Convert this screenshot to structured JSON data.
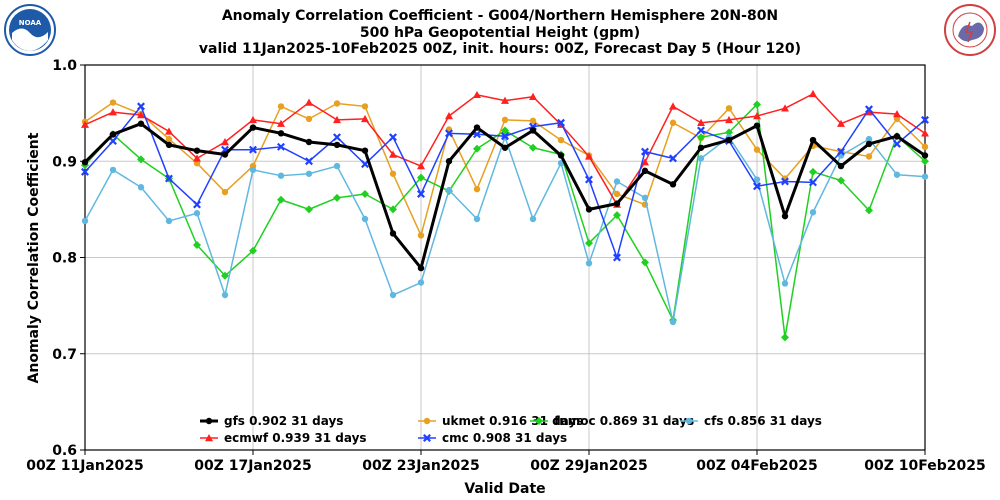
{
  "chart_data": {
    "type": "line",
    "title": "Anomaly Correlation Coefficient - G004/Northern Hemisphere 20N-80N",
    "subtitle": "500 hPa Geopotential Height (gpm)",
    "subtitle2": "valid 11Jan2025-10Feb2025 00Z, init. hours: 00Z, Forecast Day 5 (Hour 120)",
    "xlabel": "Valid Date",
    "ylabel": "Anomaly Correlation Coefficient",
    "ylim": [
      0.6,
      1.0
    ],
    "yticks": [
      "0.6",
      "0.7",
      "0.8",
      "0.9",
      "1.0"
    ],
    "xtick_labels": [
      "00Z 11Jan2025",
      "00Z 17Jan2025",
      "00Z 23Jan2025",
      "00Z 29Jan2025",
      "00Z 04Feb2025",
      "00Z 10Feb2025"
    ],
    "xtick_days": [
      0,
      6,
      12,
      18,
      24,
      30
    ],
    "grid": true,
    "legend_position": "lower-center",
    "x_days": [
      0,
      1,
      2,
      3,
      4,
      5,
      6,
      7,
      8,
      9,
      10,
      11,
      12,
      13,
      14,
      15,
      16,
      17,
      18,
      19,
      20,
      21,
      22,
      23,
      24,
      25,
      26,
      27,
      28,
      29,
      30
    ],
    "series": [
      {
        "name": "gfs",
        "label": "gfs 0.902 31 days",
        "color": "#000000",
        "marker": "circle",
        "width": 3,
        "values": [
          0.899,
          0.928,
          0.939,
          0.917,
          0.911,
          0.907,
          0.935,
          0.929,
          0.92,
          0.917,
          0.911,
          0.825,
          0.789,
          0.9,
          0.935,
          0.914,
          0.932,
          0.906,
          0.85,
          0.856,
          0.89,
          0.876,
          0.914,
          0.922,
          0.937,
          0.843,
          0.922,
          0.895,
          0.918,
          0.926,
          0.906
        ]
      },
      {
        "name": "ukmet",
        "label": "ukmet 0.916 31 days",
        "color": "#e8a020",
        "marker": "circle",
        "width": 1.5,
        "values": [
          0.941,
          0.961,
          0.949,
          0.923,
          0.898,
          0.868,
          0.895,
          0.957,
          0.944,
          0.96,
          0.957,
          0.887,
          0.823,
          0.933,
          0.871,
          0.943,
          0.942,
          0.922,
          0.906,
          0.866,
          0.855,
          0.94,
          0.924,
          0.955,
          0.912,
          0.882,
          0.916,
          0.91,
          0.905,
          0.944,
          0.915
        ]
      },
      {
        "name": "fnmoc",
        "label": "fnmoc 0.869 31 days",
        "color": "#20d020",
        "marker": "diamond",
        "width": 1.5,
        "values": [
          0.896,
          0.928,
          0.902,
          0.882,
          0.813,
          0.781,
          0.807,
          0.86,
          0.85,
          0.862,
          0.866,
          0.85,
          0.883,
          0.869,
          0.913,
          0.932,
          0.914,
          0.907,
          0.815,
          0.844,
          0.795,
          0.735,
          0.925,
          0.93,
          0.959,
          0.717,
          0.889,
          0.88,
          0.849,
          0.926,
          0.9
        ]
      },
      {
        "name": "cfs",
        "label": "cfs 0.856 31 days",
        "color": "#60b8e0",
        "marker": "circle",
        "width": 1.5,
        "values": [
          0.838,
          0.891,
          0.873,
          0.838,
          0.846,
          0.761,
          0.891,
          0.885,
          0.887,
          0.895,
          0.84,
          0.761,
          0.774,
          0.87,
          0.84,
          0.925,
          0.84,
          0.898,
          0.794,
          0.879,
          0.862,
          0.733,
          0.903,
          0.925,
          0.881,
          0.773,
          0.847,
          0.906,
          0.923,
          0.886,
          0.884
        ]
      },
      {
        "name": "ecmwf",
        "label": "ecmwf 0.939 31 days",
        "color": "#ff2020",
        "marker": "triangle",
        "width": 1.5,
        "values": [
          0.938,
          0.951,
          0.948,
          0.931,
          0.903,
          0.92,
          0.943,
          0.939,
          0.961,
          0.943,
          0.944,
          0.907,
          0.895,
          0.947,
          0.969,
          0.963,
          0.967,
          0.938,
          0.905,
          0.855,
          0.899,
          0.957,
          0.94,
          0.943,
          0.947,
          0.955,
          0.97,
          0.939,
          0.951,
          0.949,
          0.929
        ]
      },
      {
        "name": "cmc",
        "label": "cmc 0.908 31 days",
        "color": "#2040ff",
        "marker": "x",
        "width": 1.5,
        "values": [
          0.889,
          0.921,
          0.957,
          0.882,
          0.855,
          0.912,
          0.912,
          0.915,
          0.9,
          0.925,
          0.897,
          0.925,
          0.866,
          0.929,
          0.928,
          0.926,
          0.936,
          0.94,
          0.881,
          0.8,
          0.91,
          0.903,
          0.932,
          0.921,
          0.874,
          0.879,
          0.878,
          0.91,
          0.954,
          0.918,
          0.943
        ]
      }
    ]
  },
  "logos": {
    "left": {
      "name": "NOAA",
      "text": "NOAA",
      "color": "#1e5aa8"
    },
    "right": {
      "name": "National Weather Service",
      "text": "NATIONAL WEATHER SERVICE",
      "color": "#d04040"
    }
  }
}
